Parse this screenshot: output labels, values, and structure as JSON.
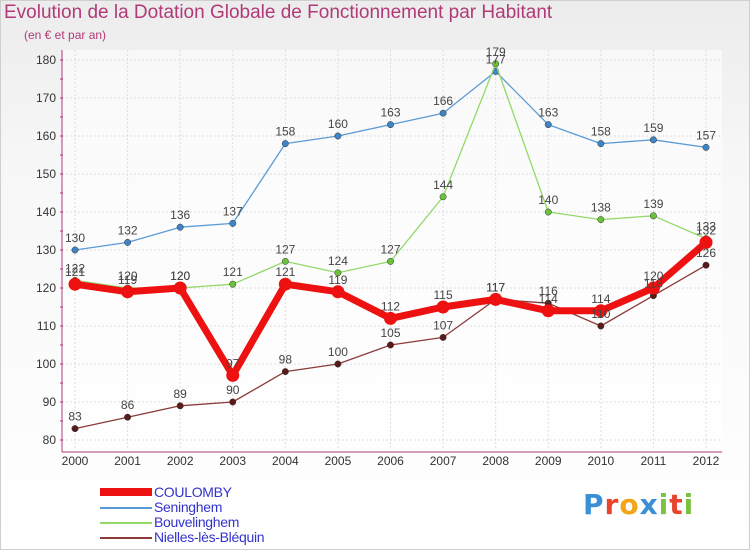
{
  "header": {
    "title": "Evolution de la Dotation Globale de Fonctionnement par Habitant",
    "subtitle": "(en € et par an)"
  },
  "logo": {
    "text": "Proxiti",
    "letter_colors": [
      "#3a8fd6",
      "#e8432b",
      "#f2a516",
      "#3a8fd6",
      "#7cc242",
      "#e8432b",
      "#7cc242"
    ]
  },
  "chart_data": {
    "type": "line",
    "x": [
      "2000",
      "2001",
      "2002",
      "2003",
      "2004",
      "2005",
      "2006",
      "2007",
      "2008",
      "2009",
      "2010",
      "2011",
      "2012"
    ],
    "ylim": [
      80,
      180
    ],
    "yticks": [
      80,
      90,
      100,
      110,
      120,
      130,
      140,
      150,
      160,
      170,
      180
    ],
    "grid": true,
    "legend_position": "bottom-left",
    "series": [
      {
        "name": "Seninghem",
        "color": "#5b9bd5",
        "marker_color": "#3f84c4",
        "values": [
          130,
          132,
          136,
          137,
          158,
          160,
          163,
          166,
          177,
          163,
          158,
          159,
          157
        ],
        "labels": [
          "130",
          "132",
          "136",
          "137",
          "158",
          "160",
          "163",
          "166",
          "177",
          "163",
          "158",
          "159",
          "157"
        ]
      },
      {
        "name": "Bouvelinghem",
        "color": "#92d96a",
        "marker_color": "#6cc13a",
        "values": [
          122,
          120,
          120,
          121,
          127,
          124,
          127,
          144,
          179,
          140,
          138,
          139,
          133
        ],
        "labels": [
          "122",
          "120",
          "120",
          "121",
          "127",
          "124",
          "127",
          "144",
          "179",
          "140",
          "138",
          "139",
          "133"
        ]
      },
      {
        "name": "Nielles-lès-Bléquin",
        "color": "#8b3a3a",
        "marker_color": "#5a1a1a",
        "values": [
          83,
          86,
          89,
          90,
          98,
          100,
          105,
          107,
          117,
          116,
          110,
          118,
          126
        ],
        "labels": [
          "83",
          "86",
          "89",
          "90",
          "98",
          "100",
          "105",
          "107",
          "117",
          "116",
          "110",
          "118",
          "126"
        ]
      },
      {
        "name": "COULOMBY",
        "color": "#ee1111",
        "marker_color": "#ee1111",
        "values": [
          121,
          119,
          120,
          97,
          121,
          119,
          112,
          115,
          117,
          114,
          114,
          120,
          132
        ],
        "labels": [
          "121",
          "119",
          "120",
          "97",
          "121",
          "119",
          "112",
          "115",
          "117",
          "114",
          "114",
          "120",
          "132"
        ]
      }
    ],
    "legend_order": [
      "COULOMBY",
      "Seninghem",
      "Bouvelinghem",
      "Nielles-lès-Bléquin"
    ]
  }
}
